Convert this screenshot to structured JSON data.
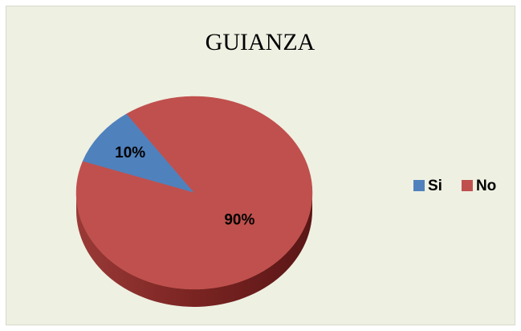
{
  "chart_data": {
    "type": "pie",
    "title": "GUIANZA",
    "categories": [
      "Si",
      "No"
    ],
    "values": [
      10,
      90
    ],
    "value_labels": [
      "10%",
      "90%"
    ],
    "colors": [
      "#4f81bd",
      "#c0504d"
    ],
    "legend": "right"
  }
}
